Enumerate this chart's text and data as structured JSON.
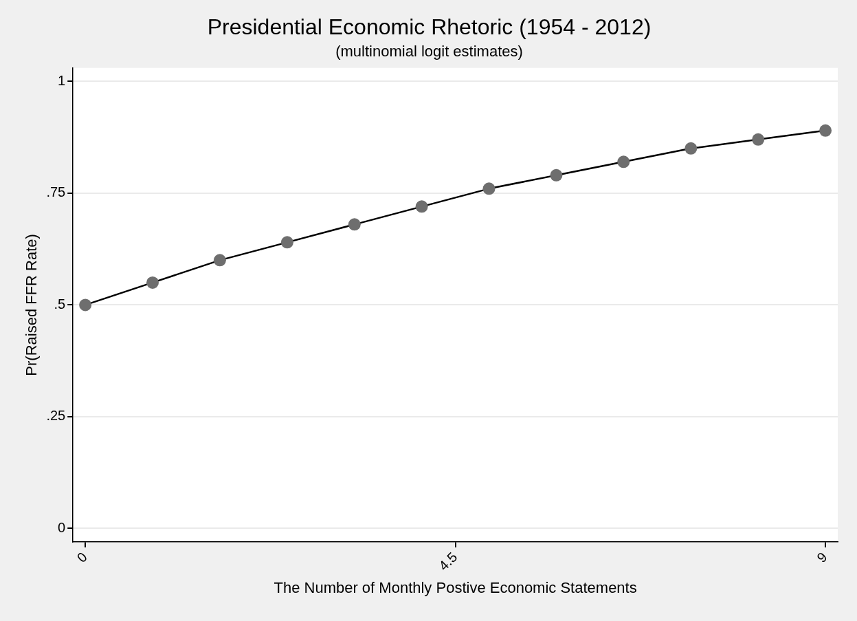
{
  "chart_data": {
    "type": "line",
    "title": "Presidential Economic Rhetoric (1954 - 2012)",
    "subtitle": "(multinomial logit estimates)",
    "xlabel": "The Number of Monthly Postive Economic Statements",
    "ylabel": "Pr(Raised FFR Rate)",
    "x": [
      0,
      0.818,
      1.636,
      2.455,
      3.273,
      4.091,
      4.909,
      5.727,
      6.545,
      7.364,
      8.182,
      9
    ],
    "series": [
      {
        "type": "line",
        "color": "#000000",
        "marker": "none",
        "values": [
          0.5,
          0.55,
          0.6,
          0.64,
          0.68,
          0.72,
          0.76,
          0.79,
          0.82,
          0.85,
          0.87,
          0.89
        ]
      },
      {
        "type": "scatter",
        "color": "#6e6e6e",
        "marker": "circle",
        "values": [
          0.5,
          0.55,
          0.6,
          0.64,
          0.68,
          0.72,
          0.76,
          0.79,
          0.82,
          0.85,
          0.87,
          0.89
        ]
      }
    ],
    "xlim": [
      -0.15,
      9.15
    ],
    "xticks": [
      0,
      4.5,
      9
    ],
    "ylim": [
      -0.03,
      1.03
    ],
    "yticks": [
      0,
      {
        "value": 0.25,
        "label": ".25"
      },
      {
        "value": 0.5,
        "label": ".5"
      },
      {
        "value": 0.75,
        "label": ".75"
      },
      1
    ],
    "grid": "y",
    "legend": false
  }
}
